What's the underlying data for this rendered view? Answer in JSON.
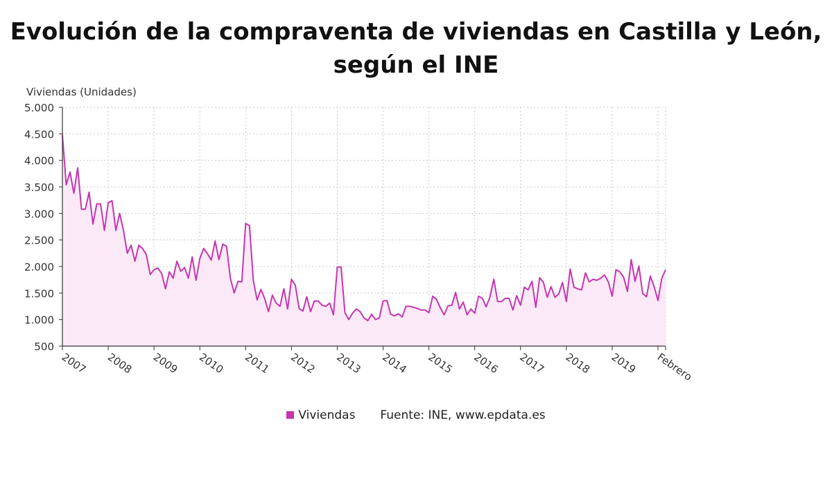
{
  "colors": {
    "line": "#c535b0",
    "fill": "#fbe9f7",
    "grid": "#c8c8c8",
    "axis": "#333333"
  },
  "chart_data": {
    "type": "area",
    "title": "Evolución de la compraventa de viviendas en Castilla y León, según el INE",
    "ylabel": "Viviendas (Unidades)",
    "xlabel": "",
    "ylim": [
      500,
      5000
    ],
    "yticks": [
      500,
      1000,
      1500,
      2000,
      2500,
      3000,
      3500,
      4000,
      4500,
      5000
    ],
    "ytick_labels": [
      "500",
      "1.000",
      "1.500",
      "2.000",
      "2.500",
      "3.000",
      "3.500",
      "4.000",
      "4.500",
      "5.000"
    ],
    "xtick_labels": [
      "2007",
      "2008",
      "2009",
      "2010",
      "2011",
      "2012",
      "2013",
      "2014",
      "2015",
      "2016",
      "2017",
      "2018",
      "2019",
      "Febrero"
    ],
    "grid": true,
    "legend_position": "bottom",
    "source": "Fuente: INE, www.epdata.es",
    "series": [
      {
        "name": "Viviendas",
        "start": "2007-01",
        "end": "2020-02",
        "values": [
          4480,
          3540,
          3780,
          3380,
          3860,
          3080,
          3080,
          3400,
          2800,
          3180,
          3180,
          2680,
          3200,
          3240,
          2680,
          3000,
          2680,
          2250,
          2400,
          2100,
          2400,
          2340,
          2220,
          1850,
          1940,
          1970,
          1870,
          1580,
          1900,
          1780,
          2100,
          1910,
          1980,
          1780,
          2180,
          1740,
          2150,
          2340,
          2240,
          2120,
          2480,
          2130,
          2420,
          2380,
          1780,
          1500,
          1720,
          1710,
          2810,
          2770,
          1740,
          1370,
          1570,
          1390,
          1150,
          1460,
          1310,
          1250,
          1580,
          1200,
          1760,
          1650,
          1210,
          1160,
          1430,
          1150,
          1350,
          1350,
          1270,
          1250,
          1310,
          1090,
          1990,
          1990,
          1130,
          1000,
          1120,
          1200,
          1150,
          1030,
          980,
          1100,
          1000,
          1030,
          1350,
          1360,
          1100,
          1070,
          1110,
          1050,
          1250,
          1250,
          1230,
          1210,
          1180,
          1180,
          1130,
          1440,
          1380,
          1220,
          1090,
          1260,
          1270,
          1510,
          1200,
          1330,
          1090,
          1200,
          1120,
          1440,
          1400,
          1240,
          1430,
          1760,
          1340,
          1340,
          1400,
          1400,
          1180,
          1450,
          1270,
          1610,
          1560,
          1720,
          1230,
          1790,
          1700,
          1420,
          1620,
          1420,
          1480,
          1700,
          1340,
          1950,
          1610,
          1580,
          1560,
          1880,
          1710,
          1760,
          1740,
          1780,
          1840,
          1710,
          1440,
          1940,
          1900,
          1800,
          1530,
          2130,
          1720,
          2010,
          1490,
          1430,
          1820,
          1620,
          1360,
          1780,
          1940
        ]
      }
    ]
  },
  "legend": {
    "label": "Viviendas"
  },
  "footer": {
    "source": "Fuente: INE, www.epdata.es"
  }
}
